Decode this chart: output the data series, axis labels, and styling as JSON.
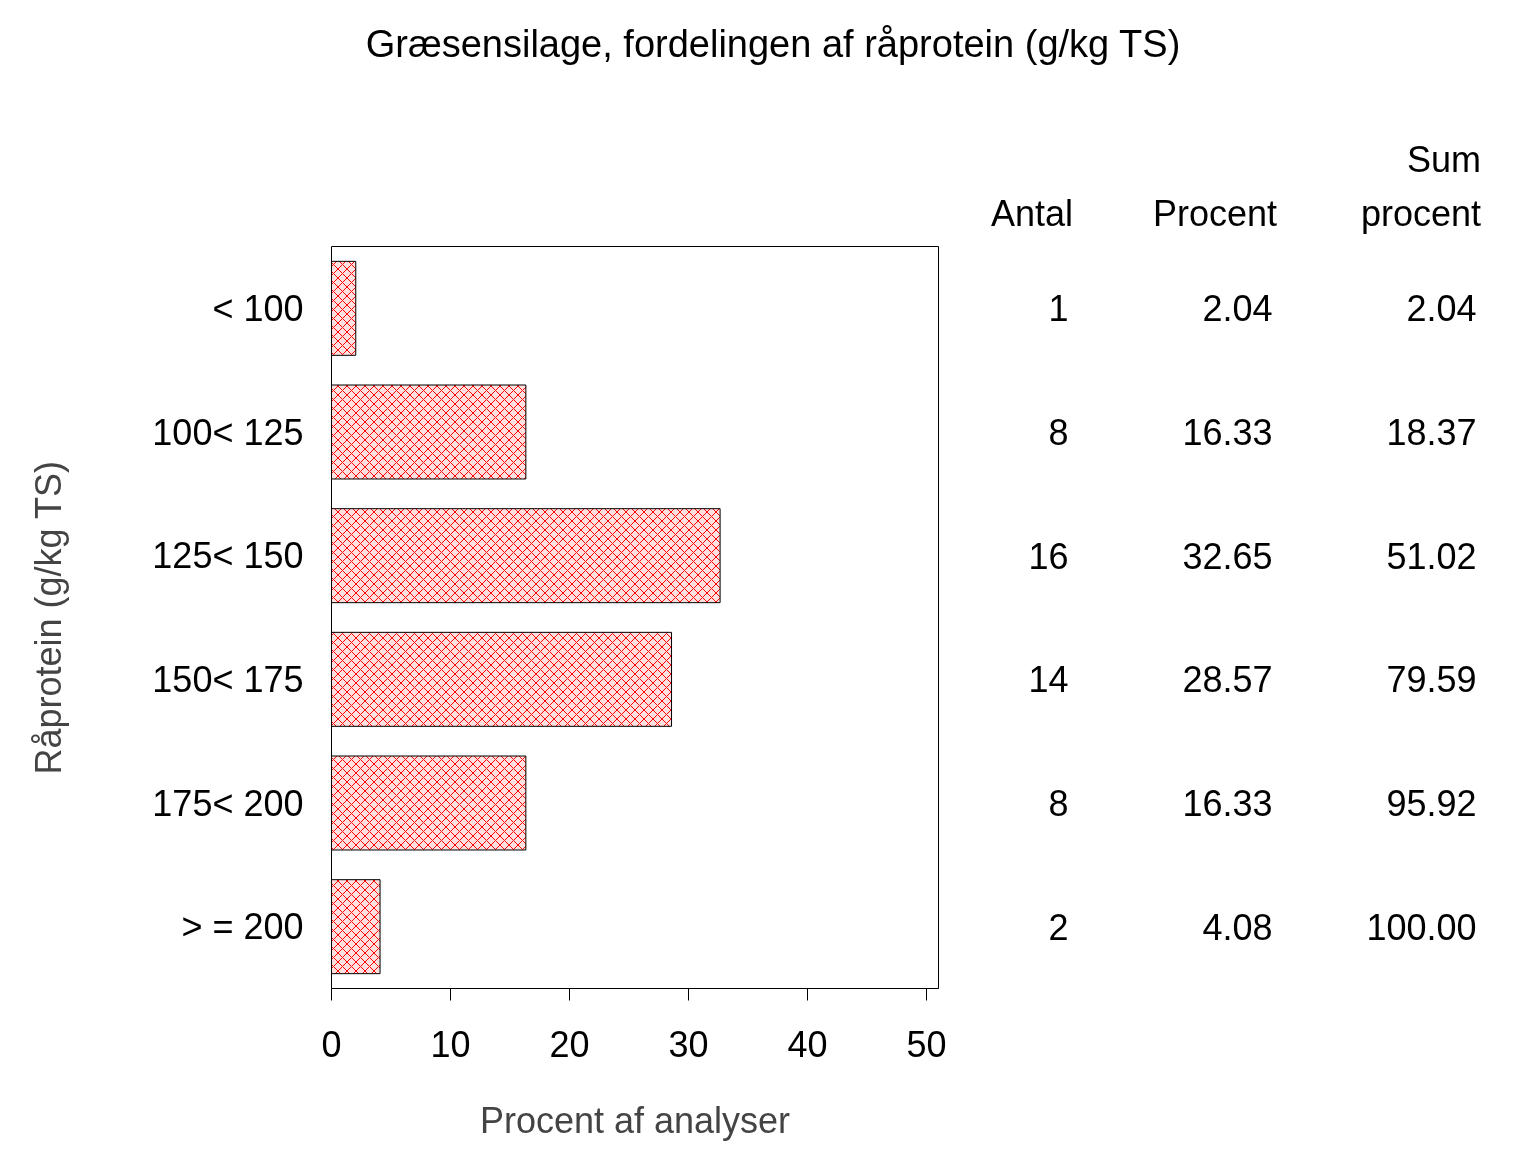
{
  "chart_data": {
    "type": "bar",
    "orientation": "horizontal",
    "title": "Græsensilage, fordelingen af råprotein (g/kg TS)",
    "xlabel": "Procent af analyser",
    "ylabel": "Råprotein (g/kg TS)",
    "categories": [
      "< 100",
      "100< 125",
      "125< 150",
      "150< 175",
      "175< 200",
      "> = 200"
    ],
    "values": [
      2.04,
      16.33,
      32.65,
      28.57,
      16.33,
      4.08
    ],
    "color": "#ff0000",
    "xlim": [
      0,
      51
    ],
    "xticks": [
      0,
      10,
      20,
      30,
      40,
      50
    ],
    "grid": false,
    "data_labels": true,
    "annotations": [
      "Antal",
      "Procent",
      "Sum\nprocent",
      "1",
      "8",
      "16",
      "14",
      "8",
      "2",
      "2.04",
      "18.37",
      "51.02",
      "79.59",
      "95.92",
      "100.00"
    ]
  }
}
